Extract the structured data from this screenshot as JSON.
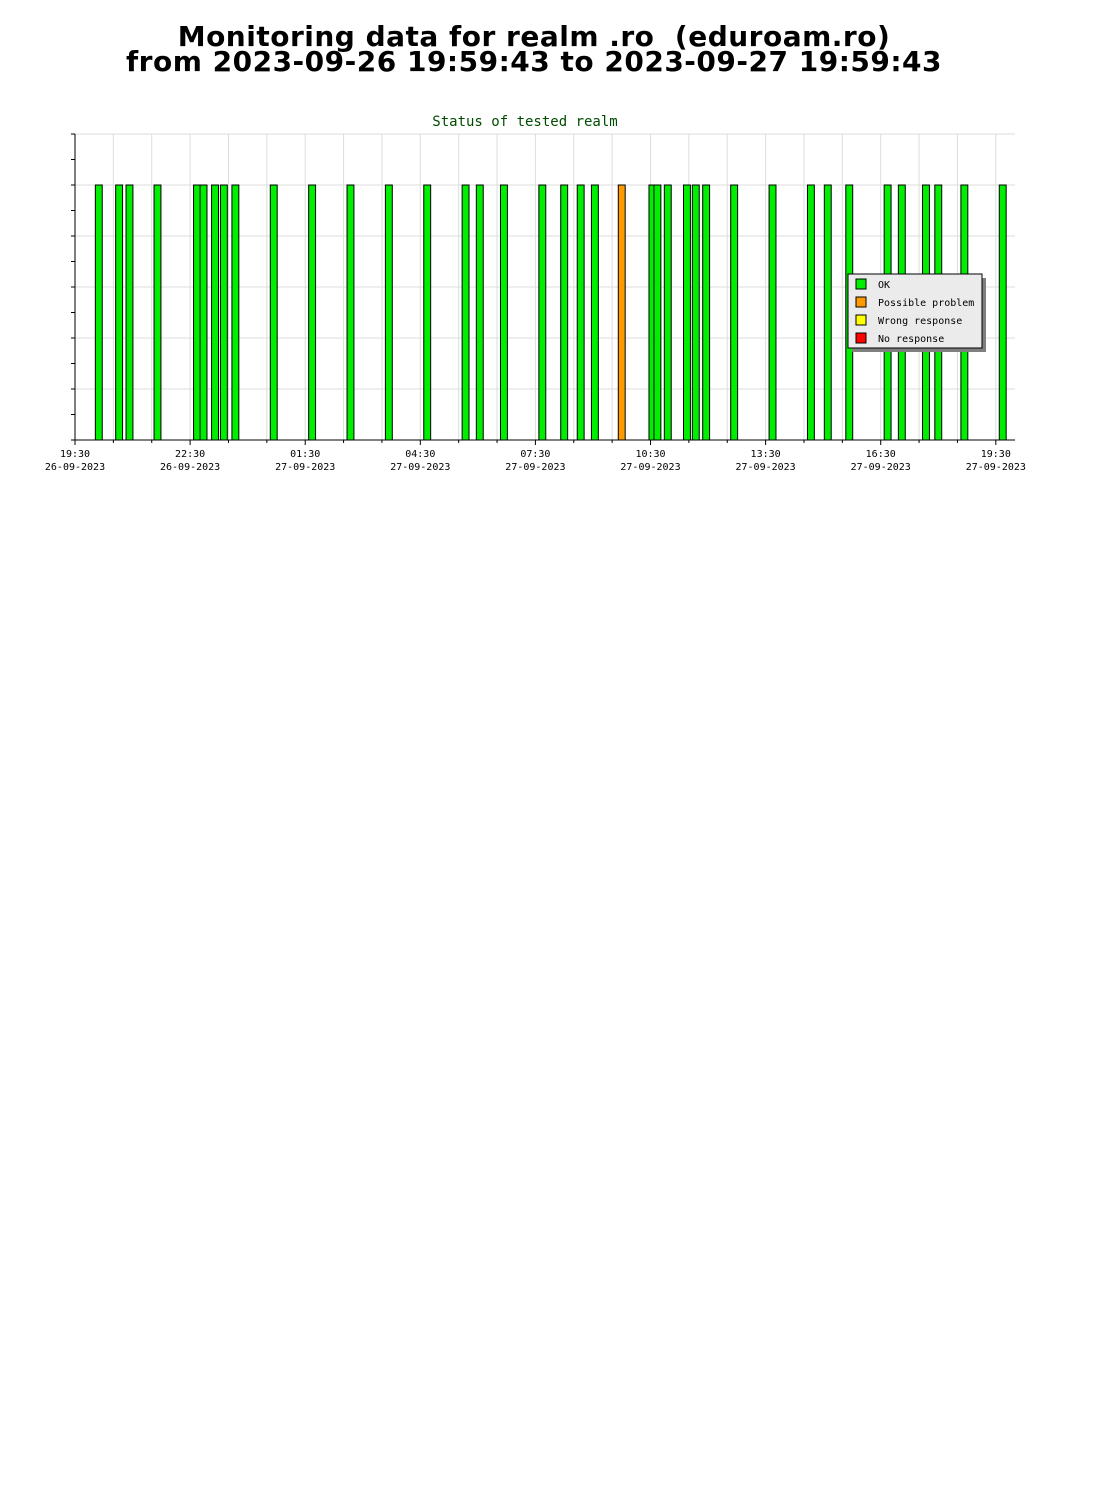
{
  "page": {
    "title_line1": "Monitoring data for realm .ro  (eduroam.ro)",
    "title_line2": "from 2023-09-26 19:59:43 to 2023-09-27 19:59:43"
  },
  "chart_data": {
    "type": "bar",
    "title": "Status of tested realm",
    "x_unit": "hours since 2023-09-26 19:30",
    "xlim": [
      0,
      24.5
    ],
    "ylim": [
      0,
      6
    ],
    "bar_value": 5,
    "bar_width_hours": 0.18,
    "grid": true,
    "ticks": [
      {
        "time": "19:30",
        "date": "26-09-2023",
        "x": 0
      },
      {
        "time": "22:30",
        "date": "26-09-2023",
        "x": 3
      },
      {
        "time": "01:30",
        "date": "27-09-2023",
        "x": 6
      },
      {
        "time": "04:30",
        "date": "27-09-2023",
        "x": 9
      },
      {
        "time": "07:30",
        "date": "27-09-2023",
        "x": 12
      },
      {
        "time": "10:30",
        "date": "27-09-2023",
        "x": 15
      },
      {
        "time": "13:30",
        "date": "27-09-2023",
        "x": 18
      },
      {
        "time": "16:30",
        "date": "27-09-2023",
        "x": 21
      },
      {
        "time": "19:30",
        "date": "27-09-2023",
        "x": 24
      }
    ],
    "series": [
      {
        "name": "OK",
        "color": "#00ee00",
        "x": [
          0.62,
          1.15,
          1.42,
          2.15,
          3.18,
          3.35,
          3.65,
          3.88,
          4.18,
          5.18,
          6.18,
          7.18,
          8.18,
          9.18,
          10.18,
          10.55,
          11.18,
          12.18,
          12.75,
          13.18,
          13.55,
          15.05,
          15.18,
          15.45,
          15.95,
          16.18,
          16.45,
          17.18,
          18.18,
          19.18,
          19.62,
          20.18,
          21.18,
          21.55,
          22.18,
          22.5,
          23.18,
          24.18
        ]
      },
      {
        "name": "Possible problem",
        "color": "#ff9900",
        "x": [
          14.25
        ]
      },
      {
        "name": "Wrong response",
        "color": "#ffff00",
        "x": []
      },
      {
        "name": "No response",
        "color": "#ff0000",
        "x": []
      }
    ],
    "legend_position": "right"
  }
}
